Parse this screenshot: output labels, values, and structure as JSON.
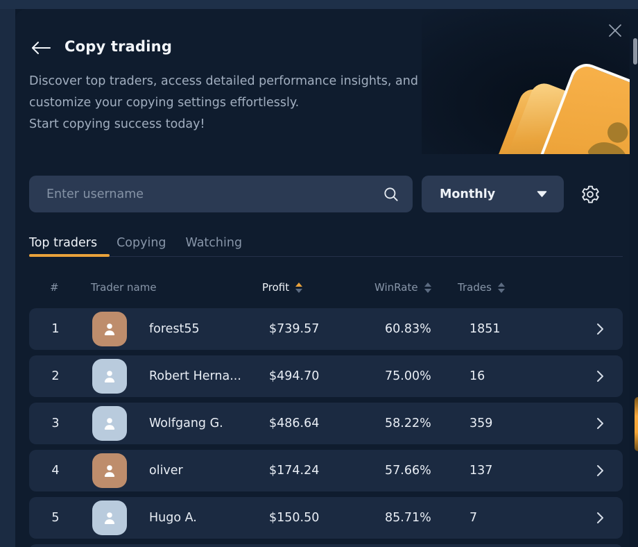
{
  "modal": {
    "title": "Copy trading",
    "description_lines": [
      "Discover top traders, access detailed performance insights, and",
      "customize your copying settings effortlessly.",
      "Start copying success today!"
    ]
  },
  "search": {
    "placeholder": "Enter username",
    "value": ""
  },
  "period_dropdown": {
    "value": "Monthly"
  },
  "tabs": [
    {
      "label": "Top traders",
      "active": true
    },
    {
      "label": "Copying",
      "active": false
    },
    {
      "label": "Watching",
      "active": false
    }
  ],
  "table": {
    "columns": [
      {
        "label": "#",
        "sortable": false
      },
      {
        "label": "Trader name",
        "sortable": false
      },
      {
        "label": "Profit",
        "sortable": true,
        "sort": "asc"
      },
      {
        "label": "WinRate",
        "sortable": true,
        "sort": null
      },
      {
        "label": "Trades",
        "sortable": true,
        "sort": null
      }
    ],
    "rows": [
      {
        "rank": "1",
        "name": "forest55",
        "profit": "$739.57",
        "winrate": "60.83%",
        "trades": "1851",
        "avatar": "tan"
      },
      {
        "rank": "2",
        "name": "Robert Herna...",
        "profit": "$494.70",
        "winrate": "75.00%",
        "trades": "16",
        "avatar": "blue"
      },
      {
        "rank": "3",
        "name": "Wolfgang G.",
        "profit": "$486.64",
        "winrate": "58.22%",
        "trades": "359",
        "avatar": "blue"
      },
      {
        "rank": "4",
        "name": "oliver",
        "profit": "$174.24",
        "winrate": "57.66%",
        "trades": "137",
        "avatar": "tan"
      },
      {
        "rank": "5",
        "name": "Hugo A.",
        "profit": "$150.50",
        "winrate": "85.71%",
        "trades": "7",
        "avatar": "blue"
      }
    ]
  },
  "colors": {
    "accent_orange": "#e9a23b",
    "profit_green": "#3fbe8c",
    "avatar_tan": "#be8d6c",
    "avatar_blue": "#b9cbdd",
    "modal_bg": "#0f1c2e",
    "row_bg": "#1b2a41"
  },
  "icons": {
    "back": "back-arrow-icon",
    "close": "close-icon",
    "search": "search-icon",
    "dropdown": "chevron-down-icon",
    "settings": "gear-icon",
    "row_action": "chevron-right-icon"
  }
}
